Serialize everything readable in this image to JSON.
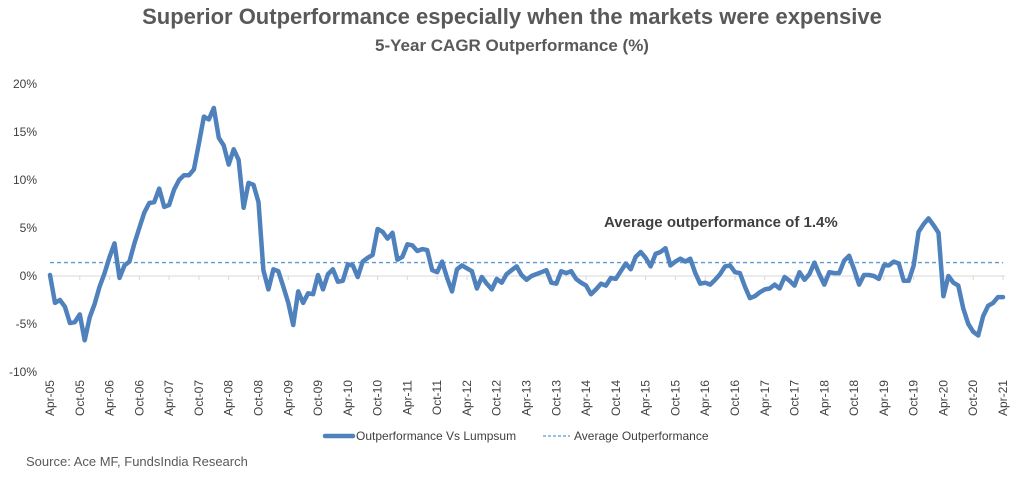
{
  "chart_data": {
    "type": "line",
    "title": "Superior Outperformance especially when the markets were expensive",
    "subtitle": "5-Year CAGR Outperformance (%)",
    "xlabel": "",
    "ylabel": "",
    "ylim": [
      -10,
      20
    ],
    "yticks": [
      "-10%",
      "-5%",
      "0%",
      "5%",
      "10%",
      "15%",
      "20%"
    ],
    "ytick_values": [
      -10,
      -5,
      0,
      5,
      10,
      15,
      20
    ],
    "xtick_labels": [
      "Apr-05",
      "Oct-05",
      "Apr-06",
      "Oct-06",
      "Apr-07",
      "Oct-07",
      "Apr-08",
      "Oct-08",
      "Apr-09",
      "Oct-09",
      "Apr-10",
      "Oct-10",
      "Apr-11",
      "Oct-11",
      "Apr-12",
      "Oct-12",
      "Apr-13",
      "Oct-13",
      "Apr-14",
      "Oct-14",
      "Apr-15",
      "Oct-15",
      "Apr-16",
      "Oct-16",
      "Apr-17",
      "Oct-17",
      "Apr-18",
      "Oct-18",
      "Apr-19",
      "Oct-19",
      "Apr-20",
      "Oct-20",
      "Apr-21"
    ],
    "grid": false,
    "legend_position": "bottom",
    "x": [
      "Apr-05",
      "May-05",
      "Jun-05",
      "Jul-05",
      "Aug-05",
      "Sep-05",
      "Oct-05",
      "Nov-05",
      "Dec-05",
      "Jan-06",
      "Feb-06",
      "Mar-06",
      "Apr-06",
      "May-06",
      "Jun-06",
      "Jul-06",
      "Aug-06",
      "Sep-06",
      "Oct-06",
      "Nov-06",
      "Dec-06",
      "Jan-07",
      "Feb-07",
      "Mar-07",
      "Apr-07",
      "May-07",
      "Jun-07",
      "Jul-07",
      "Aug-07",
      "Sep-07",
      "Oct-07",
      "Nov-07",
      "Dec-07",
      "Jan-08",
      "Feb-08",
      "Mar-08",
      "Apr-08",
      "May-08",
      "Jun-08",
      "Jul-08",
      "Aug-08",
      "Sep-08",
      "Oct-08",
      "Nov-08",
      "Dec-08",
      "Jan-09",
      "Feb-09",
      "Mar-09",
      "Apr-09",
      "May-09",
      "Jun-09",
      "Jul-09",
      "Aug-09",
      "Sep-09",
      "Oct-09",
      "Nov-09",
      "Dec-09",
      "Jan-10",
      "Feb-10",
      "Mar-10",
      "Apr-10",
      "May-10",
      "Jun-10",
      "Jul-10",
      "Aug-10",
      "Sep-10",
      "Oct-10",
      "Nov-10",
      "Dec-10",
      "Jan-11",
      "Feb-11",
      "Mar-11",
      "Apr-11",
      "May-11",
      "Jun-11",
      "Jul-11",
      "Aug-11",
      "Sep-11",
      "Oct-11",
      "Nov-11",
      "Dec-11",
      "Jan-12",
      "Feb-12",
      "Mar-12",
      "Apr-12",
      "May-12",
      "Jun-12",
      "Jul-12",
      "Aug-12",
      "Sep-12",
      "Oct-12",
      "Nov-12",
      "Dec-12",
      "Jan-13",
      "Feb-13",
      "Mar-13",
      "Apr-13",
      "May-13",
      "Jun-13",
      "Jul-13",
      "Aug-13",
      "Sep-13",
      "Oct-13",
      "Nov-13",
      "Dec-13",
      "Jan-14",
      "Feb-14",
      "Mar-14",
      "Apr-14",
      "May-14",
      "Jun-14",
      "Jul-14",
      "Aug-14",
      "Sep-14",
      "Oct-14",
      "Nov-14",
      "Dec-14",
      "Jan-15",
      "Feb-15",
      "Mar-15",
      "Apr-15",
      "May-15",
      "Jun-15",
      "Jul-15",
      "Aug-15",
      "Sep-15",
      "Oct-15",
      "Nov-15",
      "Dec-15",
      "Jan-16",
      "Feb-16",
      "Mar-16",
      "Apr-16",
      "May-16",
      "Jun-16",
      "Jul-16",
      "Aug-16",
      "Sep-16",
      "Oct-16",
      "Nov-16",
      "Dec-16",
      "Jan-17",
      "Feb-17",
      "Mar-17",
      "Apr-17",
      "May-17",
      "Jun-17",
      "Jul-17",
      "Aug-17",
      "Sep-17",
      "Oct-17",
      "Nov-17",
      "Dec-17",
      "Jan-18",
      "Feb-18",
      "Mar-18",
      "Apr-18",
      "May-18",
      "Jun-18",
      "Jul-18",
      "Aug-18",
      "Sep-18",
      "Oct-18",
      "Nov-18",
      "Dec-18",
      "Jan-19",
      "Feb-19",
      "Mar-19",
      "Apr-19",
      "May-19",
      "Jun-19",
      "Jul-19",
      "Aug-19",
      "Sep-19",
      "Oct-19",
      "Nov-19",
      "Dec-19",
      "Jan-20",
      "Feb-20",
      "Mar-20",
      "Apr-20",
      "May-20",
      "Jun-20",
      "Jul-20",
      "Aug-20",
      "Sep-20",
      "Oct-20",
      "Nov-20",
      "Dec-20",
      "Jan-21",
      "Feb-21",
      "Mar-21",
      "Apr-21"
    ],
    "series": [
      {
        "name": "Outperformance Vs Lumpsum",
        "color": "#4f81bd",
        "style": "solid",
        "values": [
          0.1,
          -2.8,
          -2.5,
          -3.2,
          -4.9,
          -4.8,
          -4.0,
          -6.7,
          -4.3,
          -2.9,
          -1.1,
          0.3,
          2.0,
          3.4,
          -0.2,
          1.1,
          1.5,
          3.4,
          5.0,
          6.6,
          7.6,
          7.7,
          9.1,
          7.2,
          7.4,
          9.0,
          10.0,
          10.5,
          10.5,
          11.1,
          13.8,
          16.6,
          16.3,
          17.5,
          14.4,
          13.6,
          11.6,
          13.2,
          12.1,
          7.1,
          9.7,
          9.5,
          7.7,
          0.6,
          -1.4,
          0.7,
          0.5,
          -1.1,
          -2.8,
          -5.1,
          -1.6,
          -2.8,
          -1.8,
          -1.9,
          0.1,
          -1.4,
          0.2,
          0.7,
          -0.6,
          -0.5,
          1.2,
          1.1,
          -0.1,
          1.5,
          1.9,
          2.2,
          4.9,
          4.6,
          3.9,
          4.5,
          1.7,
          2.0,
          3.3,
          3.2,
          2.6,
          2.8,
          2.7,
          0.6,
          0.4,
          1.5,
          -0.2,
          -1.6,
          0.7,
          1.1,
          0.8,
          0.5,
          -1.3,
          -0.1,
          -0.8,
          -1.4,
          -0.3,
          -0.7,
          0.2,
          0.6,
          1.0,
          0.1,
          -0.4,
          0.0,
          0.2,
          0.4,
          0.6,
          -0.7,
          -0.8,
          0.5,
          0.3,
          0.5,
          -0.3,
          -0.7,
          -1.0,
          -1.9,
          -1.4,
          -0.8,
          -1.0,
          -0.2,
          -0.3,
          0.5,
          1.3,
          0.7,
          2.0,
          2.5,
          1.9,
          1.0,
          2.3,
          2.5,
          2.9,
          1.1,
          1.5,
          1.8,
          1.5,
          1.8,
          0.3,
          -0.8,
          -0.7,
          -0.9,
          -0.4,
          0.2,
          1.0,
          1.1,
          0.4,
          0.3,
          -1.1,
          -2.3,
          -2.1,
          -1.7,
          -1.4,
          -1.3,
          -0.9,
          -1.3,
          -0.1,
          -0.5,
          -1.0,
          0.4,
          -0.4,
          0.2,
          1.4,
          0.2,
          -0.9,
          0.4,
          0.3,
          0.3,
          1.6,
          2.1,
          0.7,
          -0.9,
          0.1,
          0.1,
          0.0,
          -0.3,
          1.1,
          1.1,
          1.5,
          1.3,
          -0.5,
          -0.5,
          1.1,
          4.6,
          5.4,
          6.0,
          5.3,
          4.5,
          -2.1,
          0.0,
          -0.7,
          -1.0,
          -3.4,
          -5.0,
          -5.8,
          -6.2,
          -4.2,
          -3.1,
          -2.8,
          -2.2,
          -2.2
        ]
      },
      {
        "name": "Average Outperformance",
        "color": "#5b9bd5",
        "style": "dashed",
        "value": 1.4
      }
    ],
    "annotation": "Average outperformance of 1.4%"
  },
  "source": "Source: Ace MF, FundsIndia Research"
}
